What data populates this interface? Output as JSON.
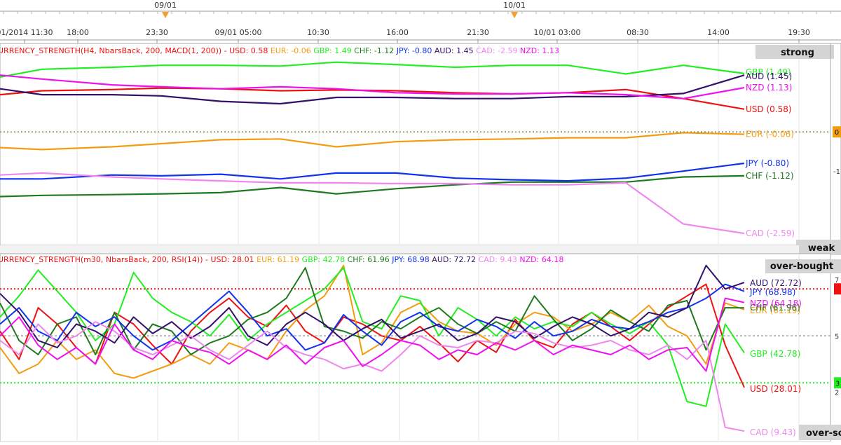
{
  "timeline": {
    "date_markers": [
      "09/01",
      "10/01"
    ],
    "time_labels": [
      "01/2014 11:30",
      "18:00",
      "23:30",
      "09/01 05:00",
      "10:30",
      "16:00",
      "21:30",
      "10/01 03:00",
      "08:30",
      "14:00",
      "19:30"
    ]
  },
  "chart_data": [
    {
      "type": "line",
      "title_prefix": "URRENCY_STRENGTH(H4, NbarsBack, 200, MACD(1, 200)) - ",
      "zone_labels": {
        "top": "strong",
        "bottom": "weak"
      },
      "right_axis_labels": [
        "0",
        "-1"
      ],
      "zero_line": 0,
      "ylim": [
        -2.75,
        1.9
      ],
      "x": [
        0,
        1,
        2,
        3,
        4,
        5,
        6,
        7,
        8,
        9,
        10,
        11,
        12,
        13
      ],
      "series": [
        {
          "name": "USD",
          "label": "USD: 0.58",
          "end_label": "USD (0.58)",
          "color": "#ee1111",
          "values": [
            0.95,
            1.05,
            1.08,
            1.12,
            1.1,
            1.05,
            1.07,
            1.05,
            1.0,
            0.97,
            1.0,
            1.08,
            0.85,
            0.58
          ]
        },
        {
          "name": "EUR",
          "label": "EUR: -0.06",
          "end_label": "EUR (-0.06)",
          "color": "#f39c12",
          "values": [
            -0.4,
            -0.45,
            -0.38,
            -0.3,
            -0.2,
            -0.18,
            -0.38,
            -0.25,
            -0.2,
            -0.18,
            -0.15,
            -0.15,
            -0.02,
            -0.06
          ]
        },
        {
          "name": "GBP",
          "label": "GBP: 1.49",
          "end_label": "GBP (1.49)",
          "color": "#22ee22",
          "values": [
            1.4,
            1.6,
            1.65,
            1.7,
            1.7,
            1.68,
            1.78,
            1.72,
            1.65,
            1.7,
            1.7,
            1.48,
            1.7,
            1.49
          ]
        },
        {
          "name": "CHF",
          "label": "CHF: -1.12",
          "end_label": "CHF (-1.12)",
          "color": "#1f7a1f",
          "values": [
            -1.65,
            -1.62,
            -1.6,
            -1.58,
            -1.55,
            -1.42,
            -1.58,
            -1.45,
            -1.35,
            -1.28,
            -1.28,
            -1.28,
            -1.15,
            -1.12
          ]
        },
        {
          "name": "JPY",
          "label": "JPY: -0.80",
          "end_label": "JPY (-0.80)",
          "color": "#1133ee",
          "values": [
            -1.2,
            -1.2,
            -1.1,
            -1.12,
            -1.08,
            -1.2,
            -1.05,
            -1.05,
            -1.18,
            -1.22,
            -1.25,
            -1.18,
            -1.0,
            -0.8
          ]
        },
        {
          "name": "AUD",
          "label": "AUD: 1.45",
          "end_label": "AUD (1.45)",
          "color": "#33116b",
          "values": [
            1.1,
            0.95,
            0.95,
            0.92,
            0.78,
            0.72,
            0.88,
            0.88,
            0.85,
            0.85,
            0.9,
            0.9,
            0.98,
            1.45
          ]
        },
        {
          "name": "CAD",
          "label": "CAD: -2.59",
          "end_label": "CAD (-2.59)",
          "color": "#ee88ee",
          "values": [
            -1.1,
            -1.05,
            -1.15,
            -1.2,
            -1.25,
            -1.3,
            -1.3,
            -1.32,
            -1.32,
            -1.35,
            -1.35,
            -1.3,
            -2.35,
            -2.59
          ]
        },
        {
          "name": "NZD",
          "label": "NZD: 1.13",
          "end_label": "NZD (1.13)",
          "color": "#ee11ee",
          "values": [
            1.45,
            1.35,
            1.2,
            1.15,
            1.1,
            1.15,
            1.1,
            1.0,
            0.97,
            0.97,
            1.0,
            0.95,
            0.85,
            1.13
          ]
        }
      ]
    },
    {
      "type": "line",
      "title_prefix": "URRENCY_STRENGTH(m30, NbarsBack, 200, RSI(14)) - ",
      "zone_labels": {
        "top": "over-bought",
        "bottom": "over-so"
      },
      "right_axis_labels": [
        "7",
        "5",
        "3",
        "2"
      ],
      "overbought_level": 70,
      "midline": 50,
      "oversold_level": 30,
      "ylim": [
        5,
        85
      ],
      "x_count": 40,
      "series": [
        {
          "name": "USD",
          "label": "USD: 28.01",
          "end_label": "USD (28.01)",
          "color": "#ee1111",
          "values": [
            52,
            40,
            62,
            55,
            45,
            38,
            60,
            55,
            46,
            38,
            52,
            60,
            66,
            58,
            54,
            63,
            52,
            47,
            58,
            55,
            50,
            48,
            54,
            47,
            39,
            48,
            43,
            57,
            48,
            45,
            55,
            60,
            54,
            48,
            55,
            62,
            67,
            72,
            46,
            28.01
          ]
        },
        {
          "name": "EUR",
          "label": "EUR: 61.19",
          "end_label": "EUR (61.19)",
          "color": "#f39c12",
          "values": [
            45,
            34,
            38,
            48,
            40,
            44,
            34,
            32,
            35,
            38,
            42,
            38,
            47,
            44,
            40,
            52,
            61,
            67,
            80,
            42,
            47,
            60,
            64,
            56,
            52,
            51,
            46,
            55,
            60,
            58,
            52,
            55,
            60,
            56,
            63,
            54,
            50,
            38,
            64,
            61.19
          ]
        },
        {
          "name": "GBP",
          "label": "GBP: 42.78",
          "end_label": "GBP (42.78)",
          "color": "#22ee22",
          "values": [
            58,
            67,
            78,
            69,
            60,
            48,
            55,
            77,
            66,
            60,
            56,
            50,
            59,
            48,
            55,
            60,
            65,
            70,
            79,
            56,
            53,
            67,
            65,
            50,
            62,
            57,
            50,
            58,
            53,
            56,
            54,
            60,
            55,
            51,
            56,
            46,
            22,
            20,
            55,
            42.78
          ]
        },
        {
          "name": "CHF",
          "label": "CHF: 61.96",
          "end_label": "CHF (61.96)",
          "color": "#1f7a1f",
          "values": [
            64,
            48,
            42,
            55,
            58,
            42,
            60,
            44,
            55,
            52,
            42,
            47,
            50,
            57,
            60,
            66,
            79,
            54,
            52,
            49,
            56,
            53,
            58,
            62,
            55,
            51,
            56,
            52,
            67,
            57,
            48,
            53,
            61,
            56,
            52,
            63,
            65,
            44,
            62,
            61.96
          ]
        },
        {
          "name": "JPY",
          "label": "JPY: 68.98",
          "end_label": "JPY (68.98)",
          "color": "#1133ee",
          "values": [
            55,
            62,
            52,
            48,
            60,
            54,
            58,
            50,
            44,
            48,
            55,
            62,
            69,
            60,
            50,
            53,
            44,
            47,
            59,
            52,
            46,
            56,
            60,
            54,
            52,
            57,
            54,
            49,
            56,
            50,
            52,
            57,
            54,
            53,
            56,
            60,
            62,
            66,
            72,
            68.98
          ]
        },
        {
          "name": "AUD",
          "label": "AUD: 72.72",
          "end_label": "AUD (72.72)",
          "color": "#33116b",
          "values": [
            68,
            60,
            48,
            45,
            55,
            52,
            47,
            58,
            51,
            56,
            49,
            54,
            62,
            50,
            46,
            55,
            60,
            55,
            48,
            53,
            57,
            49,
            52,
            55,
            48,
            51,
            58,
            56,
            49,
            54,
            58,
            55,
            50,
            53,
            60,
            58,
            62,
            80,
            70,
            72.72
          ]
        },
        {
          "name": "CAD",
          "label": "CAD: 9.43",
          "end_label": "CAD (9.43)",
          "color": "#ee88ee",
          "values": [
            48,
            42,
            55,
            47,
            50,
            56,
            52,
            45,
            42,
            46,
            50,
            44,
            40,
            46,
            52,
            45,
            42,
            40,
            36,
            38,
            35,
            42,
            50,
            46,
            45,
            48,
            47,
            52,
            51,
            47,
            45,
            46,
            48,
            44,
            42,
            46,
            40,
            48,
            11,
            9.43
          ]
        },
        {
          "name": "NZD",
          "label": "NZD: 64.18",
          "end_label": "NZD (64.18)",
          "color": "#ee11ee",
          "values": [
            50,
            58,
            46,
            40,
            45,
            38,
            55,
            44,
            40,
            48,
            45,
            43,
            38,
            44,
            40,
            46,
            38,
            45,
            48,
            37,
            42,
            48,
            46,
            40,
            44,
            42,
            47,
            44,
            48,
            42,
            46,
            44,
            42,
            46,
            40,
            44,
            45,
            35,
            66,
            64.18
          ]
        }
      ]
    }
  ]
}
